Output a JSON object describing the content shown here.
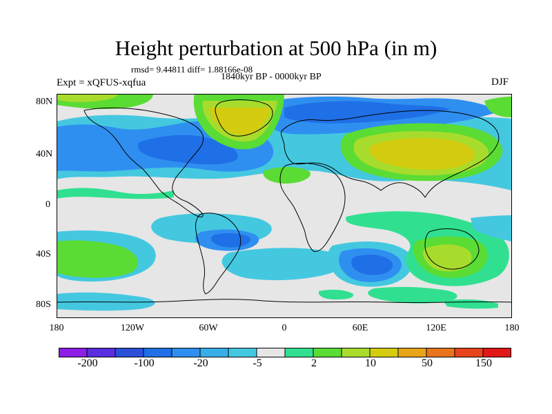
{
  "plot": {
    "title": "Height perturbation at 500 hPa (in m)",
    "stats": "rmsd= 9.44811 diff= 1.88166e-08",
    "period": "1840kyr BP - 0000kyr BP",
    "experiment": "Expt = xQFUS-xqfua",
    "season": "DJF"
  },
  "axes": {
    "lat_labels": [
      "80N",
      "40N",
      "0",
      "40S",
      "80S"
    ],
    "lon_labels": [
      "180",
      "120W",
      "60W",
      "0",
      "60E",
      "120E",
      "180"
    ]
  },
  "colorbar": {
    "colors": [
      "#8c1ee6",
      "#5a2ee0",
      "#2b4fd8",
      "#1f6fe6",
      "#2f8ff0",
      "#38aee8",
      "#44c8e0",
      "#e6e6e6",
      "#30e090",
      "#5adc34",
      "#a8dc2c",
      "#d4cc10",
      "#e8a418",
      "#e8741c",
      "#e8441c",
      "#e01818"
    ],
    "labels": [
      "-200",
      "-100",
      "-20",
      "-5",
      "2",
      "10",
      "50",
      "150"
    ]
  }
}
